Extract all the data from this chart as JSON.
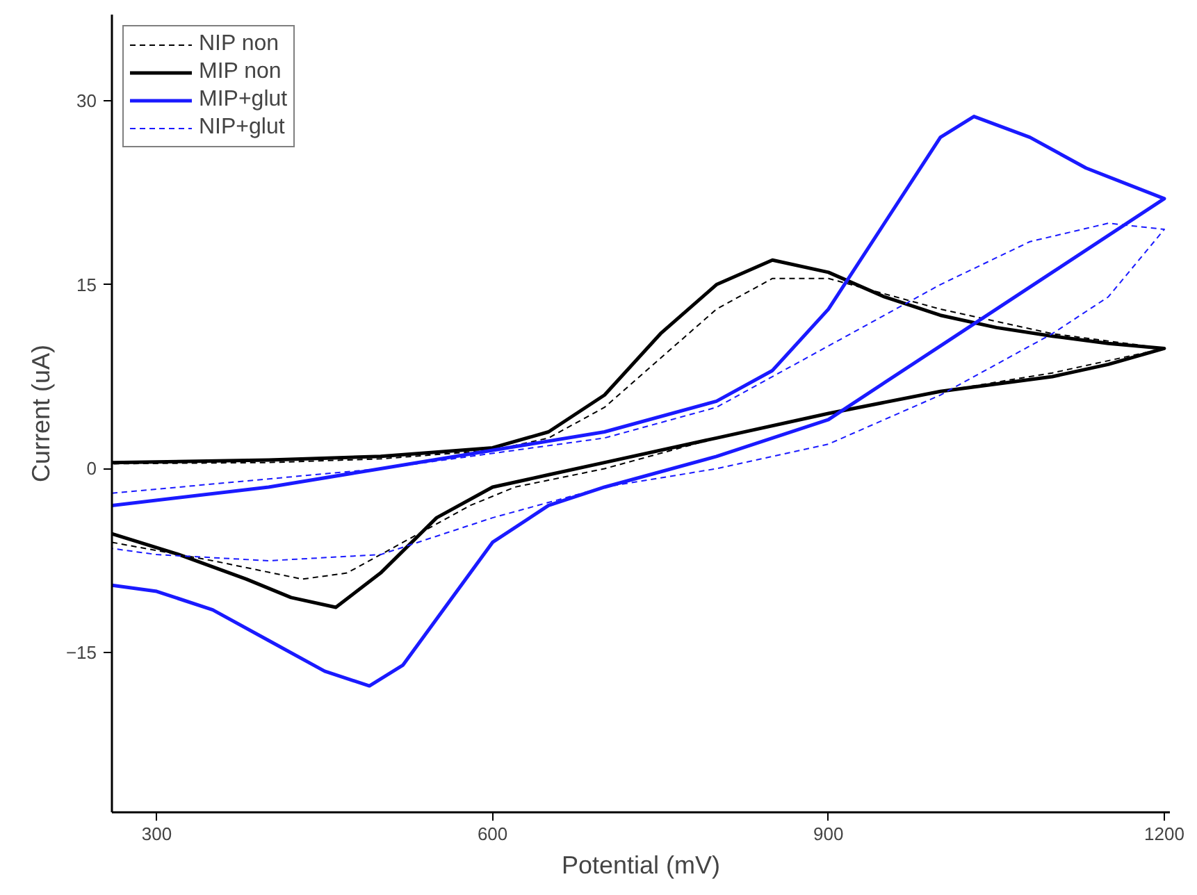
{
  "chart_data": {
    "type": "line",
    "xlabel": "Potential (mV)",
    "ylabel": "Current (uA)",
    "xlim": [
      260,
      1205
    ],
    "ylim": [
      -28,
      37
    ],
    "xticks": [
      300,
      600,
      900,
      1200
    ],
    "yticks": [
      -15,
      0,
      15,
      30
    ],
    "grid": false,
    "legend": "top left",
    "marker": "none",
    "series": [
      {
        "name": "NIP non",
        "color": "#000000",
        "line_style": "dashed",
        "x": [
          260,
          350,
          430,
          470,
          520,
          580,
          620,
          700,
          800,
          900,
          1000,
          1100,
          1200,
          1100,
          1000,
          900,
          850,
          800,
          750,
          700,
          650,
          600,
          500,
          400,
          260
        ],
        "values": [
          -6,
          -7.5,
          -9,
          -8.5,
          -6,
          -3,
          -1.5,
          0,
          2.5,
          4.5,
          6.3,
          7.8,
          9.8,
          11,
          13,
          15.5,
          15.5,
          13,
          9,
          5,
          2.5,
          1.5,
          0.8,
          0.5,
          0.4
        ]
      },
      {
        "name": "MIP non",
        "color": "#000000",
        "line_style": "solid",
        "x": [
          260,
          400,
          500,
          600,
          650,
          700,
          750,
          800,
          850,
          900,
          950,
          1000,
          1050,
          1100,
          1150,
          1200,
          1150,
          1100,
          1000,
          900,
          800,
          700,
          650,
          600,
          550,
          500,
          460,
          420,
          380,
          320,
          260
        ],
        "values": [
          0.5,
          0.7,
          1.0,
          1.7,
          3,
          6,
          11,
          15,
          17,
          16,
          14,
          12.5,
          11.5,
          10.8,
          10.2,
          9.8,
          8.5,
          7.5,
          6.3,
          4.5,
          2.5,
          0.5,
          -0.5,
          -1.5,
          -4,
          -8.5,
          -11.3,
          -10.5,
          -9,
          -7,
          -5.3
        ]
      },
      {
        "name": "MIP+glut",
        "color": "#1a1aff",
        "line_style": "solid",
        "x": [
          260,
          400,
          500,
          600,
          700,
          800,
          850,
          900,
          950,
          1000,
          1030,
          1080,
          1130,
          1200,
          1100,
          1000,
          900,
          800,
          700,
          650,
          600,
          560,
          520,
          490,
          450,
          400,
          350,
          300,
          260
        ],
        "values": [
          -3,
          -1.5,
          0,
          1.5,
          3,
          5.5,
          8,
          13,
          20,
          27,
          28.7,
          27,
          24.5,
          22,
          16,
          10,
          4,
          1,
          -1.5,
          -3,
          -6,
          -11,
          -16,
          -17.7,
          -16.5,
          -14,
          -11.5,
          -10,
          -9.5
        ]
      },
      {
        "name": "NIP+glut",
        "color": "#1a1aff",
        "line_style": "dashed",
        "x": [
          260,
          500,
          700,
          800,
          900,
          1000,
          1080,
          1150,
          1200,
          1150,
          1100,
          1000,
          900,
          800,
          700,
          600,
          500,
          400,
          300,
          260
        ],
        "values": [
          -2,
          0,
          2.5,
          5,
          10,
          15,
          18.5,
          20,
          19.5,
          14,
          11,
          6,
          2,
          0,
          -1.5,
          -4,
          -7,
          -7.5,
          -7,
          -6.5
        ]
      }
    ]
  }
}
